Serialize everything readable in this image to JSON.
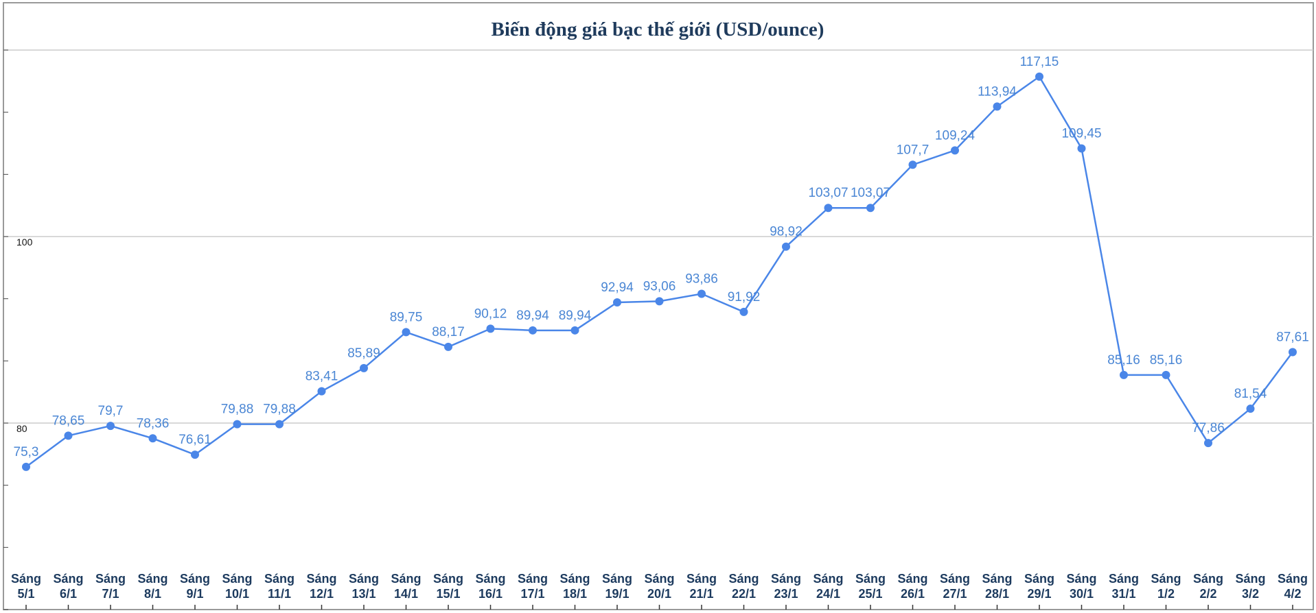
{
  "chart_data": {
    "type": "line",
    "title": "Biến động giá bạc thế giới (USD/ounce)",
    "xlabel": "",
    "ylabel": "",
    "ylim": [
      60,
      120
    ],
    "yticks": [
      "100",
      "80"
    ],
    "grid": true,
    "line_color": "#4a86e8",
    "title_color": "#1f3b5c",
    "categories": [
      [
        "Sáng",
        "5/1"
      ],
      [
        "Sáng",
        "6/1"
      ],
      [
        "Sáng",
        "7/1"
      ],
      [
        "Sáng",
        "8/1"
      ],
      [
        "Sáng",
        "9/1"
      ],
      [
        "Sáng",
        "10/1"
      ],
      [
        "Sáng",
        "11/1"
      ],
      [
        "Sáng",
        "12/1"
      ],
      [
        "Sáng",
        "13/1"
      ],
      [
        "Sáng",
        "14/1"
      ],
      [
        "Sáng",
        "15/1"
      ],
      [
        "Sáng",
        "16/1"
      ],
      [
        "Sáng",
        "17/1"
      ],
      [
        "Sáng",
        "18/1"
      ],
      [
        "Sáng",
        "19/1"
      ],
      [
        "Sáng",
        "20/1"
      ],
      [
        "Sáng",
        "21/1"
      ],
      [
        "Sáng",
        "22/1"
      ],
      [
        "Sáng",
        "23/1"
      ],
      [
        "Sáng",
        "24/1"
      ],
      [
        "Sáng",
        "25/1"
      ],
      [
        "Sáng",
        "26/1"
      ],
      [
        "Sáng",
        "27/1"
      ],
      [
        "Sáng",
        "28/1"
      ],
      [
        "Sáng",
        "29/1"
      ],
      [
        "Sáng",
        "30/1"
      ],
      [
        "Sáng",
        "31/1"
      ],
      [
        "Sáng",
        "1/2"
      ],
      [
        "Sáng",
        "2/2"
      ],
      [
        "Sáng",
        "3/2"
      ],
      [
        "Sáng",
        "4/2"
      ]
    ],
    "values": [
      75.3,
      78.65,
      79.7,
      78.36,
      76.61,
      79.88,
      79.88,
      83.41,
      85.89,
      89.75,
      88.17,
      90.12,
      89.94,
      89.94,
      92.94,
      93.06,
      93.86,
      91.92,
      98.92,
      103.07,
      103.07,
      107.7,
      109.24,
      113.94,
      117.15,
      109.45,
      85.16,
      85.16,
      77.86,
      81.54,
      87.61
    ],
    "data_labels": [
      "75,3",
      "78,65",
      "79,7",
      "78,36",
      "76,61",
      "79,88",
      "79,88",
      "83,41",
      "85,89",
      "89,75",
      "88,17",
      "90,12",
      "89,94",
      "89,94",
      "92,94",
      "93,06",
      "93,86",
      "91,92",
      "98,92",
      "103,07",
      "103,07",
      "107,7",
      "109,24",
      "113,94",
      "117,15",
      "109,45",
      "85,16",
      "85,16",
      "77,86",
      "81,54",
      "87,61"
    ]
  }
}
